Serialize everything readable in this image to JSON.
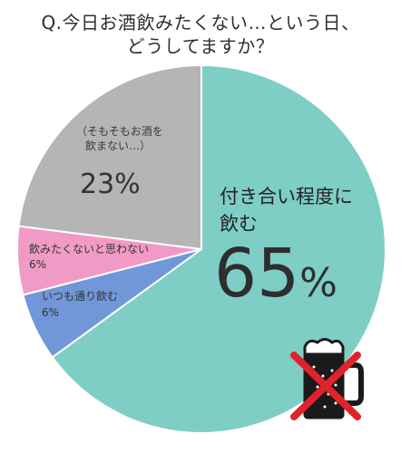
{
  "title": {
    "line1": "Q.今日お酒飲みたくない…という日、",
    "line2": "どうしてますか？"
  },
  "colors": {
    "main": "#7ecec6",
    "gray": "#b5b5b5",
    "pink": "#f29ac6",
    "blue": "#7197d8",
    "cross": "#e0232a"
  },
  "chart_data": {
    "type": "pie",
    "title": "Q.今日お酒飲みたくない…という日、どうしてますか？",
    "slices": [
      {
        "label": "付き合い程度に飲む",
        "value": 65,
        "display": "65%",
        "color": "#7ecec6"
      },
      {
        "label": "いつも通り飲む",
        "value": 6,
        "display": "6%",
        "color": "#7197d8"
      },
      {
        "label": "飲みたくないと思わない",
        "value": 6,
        "display": "6%",
        "color": "#f29ac6"
      },
      {
        "label": "（そもそもお酒を飲まない…）",
        "value": 23,
        "display": "23%",
        "color": "#b5b5b5"
      }
    ]
  },
  "labels": {
    "main_line1": "付き合い程度に",
    "main_line2": "飲む",
    "main_pct_num": "65",
    "main_pct_unit": "%",
    "gray_line1": "（そもそもお酒を",
    "gray_line2": "飲まない…）",
    "gray_pct": "23%",
    "pink_name": "飲みたくないと思わない",
    "pink_pct": "6%",
    "blue_name": "いつも通り飲む",
    "blue_pct": "6%"
  },
  "icons": {
    "beer_mug": "beer-mug-icon",
    "cross": "cross-icon"
  }
}
